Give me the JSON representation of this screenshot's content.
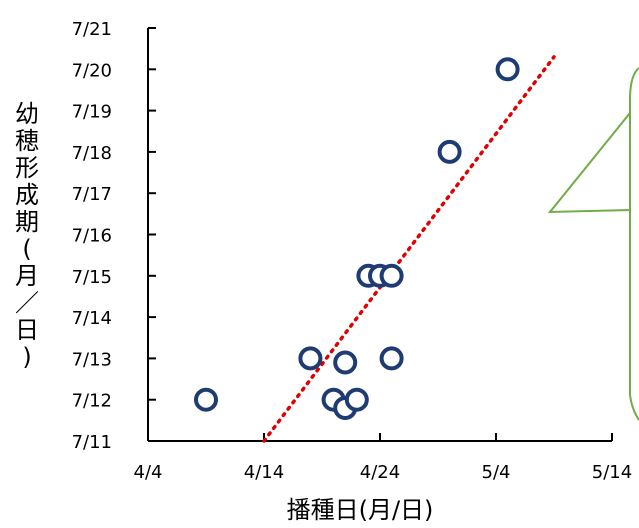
{
  "chart_data": {
    "type": "scatter",
    "xlabel": "播種日(月/日)",
    "ylabel": "幼穂形成期(月／日)",
    "x_ticks": [
      "4/4",
      "4/14",
      "4/24",
      "5/4",
      "5/14"
    ],
    "y_ticks": [
      "7/11",
      "7/12",
      "7/13",
      "7/14",
      "7/15",
      "7/16",
      "7/17",
      "7/18",
      "7/19",
      "7/20",
      "7/21"
    ],
    "xlim": [
      "4/4",
      "5/14"
    ],
    "ylim": [
      "7/11",
      "7/21"
    ],
    "x_year_ref": "04-04",
    "points": [
      {
        "x": "4/9",
        "y": "7/12"
      },
      {
        "x": "4/18",
        "y": "7/13"
      },
      {
        "x": "4/20",
        "y": "7/12"
      },
      {
        "x": "4/21",
        "y": "7/11.8"
      },
      {
        "x": "4/22",
        "y": "7/12"
      },
      {
        "x": "4/21",
        "y": "7/12.9"
      },
      {
        "x": "4/23",
        "y": "7/15"
      },
      {
        "x": "4/24",
        "y": "7/15"
      },
      {
        "x": "4/25",
        "y": "7/15"
      },
      {
        "x": "4/25",
        "y": "7/13"
      },
      {
        "x": "4/30",
        "y": "7/18"
      },
      {
        "x": "5/5",
        "y": "7/20"
      }
    ],
    "trendline": {
      "style": "dotted",
      "color": "#e00000",
      "from": {
        "x": "4/14",
        "y": "7/11"
      },
      "to": {
        "x": "5/9",
        "y": "7/20.3"
      }
    },
    "marker_color": "#1f3b73",
    "callout_color": "#70ad47",
    "grid": false
  }
}
